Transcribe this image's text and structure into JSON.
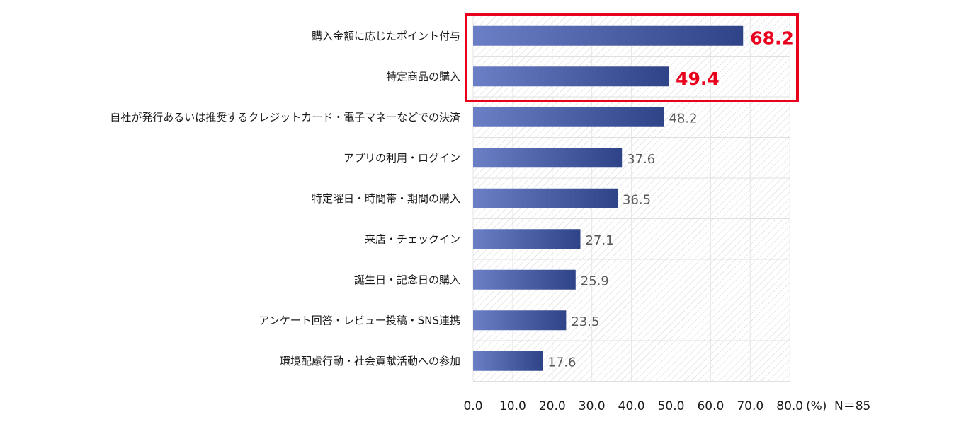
{
  "chart_data": {
    "type": "bar",
    "orientation": "horizontal",
    "categories": [
      "購入金額に応じたポイント付与",
      "特定商品の購入",
      "自社が発行あるいは推奨するクレジットカード・電子マネーなどでの決済",
      "アプリの利用・ログイン",
      "特定曜日・時間帯・期間の購入",
      "来店・チェックイン",
      "誕生日・記念日の購入",
      "アンケート回答・レビュー投稿・SNS連携",
      "環境配慮行動・社会貢献活動への参加"
    ],
    "values": [
      68.2,
      49.4,
      48.2,
      37.6,
      36.5,
      27.1,
      25.9,
      23.5,
      17.6
    ],
    "value_labels": [
      "68.2",
      "49.4",
      "48.2",
      "37.6",
      "36.5",
      "27.1",
      "25.9",
      "23.5",
      "17.6"
    ],
    "highlighted": [
      0,
      1
    ],
    "xlim": [
      0,
      80
    ],
    "x_ticks": [
      "0.0",
      "10.0",
      "20.0",
      "30.0",
      "40.0",
      "50.0",
      "60.0",
      "70.0",
      "80.0"
    ],
    "unit_label": "(%)",
    "sample_size": "N＝85",
    "grid": true,
    "colors": {
      "bar_light": "#6b7fc6",
      "bar_dark": "#2f4388",
      "highlight": "#e8001c",
      "value_label": "#595959"
    }
  }
}
